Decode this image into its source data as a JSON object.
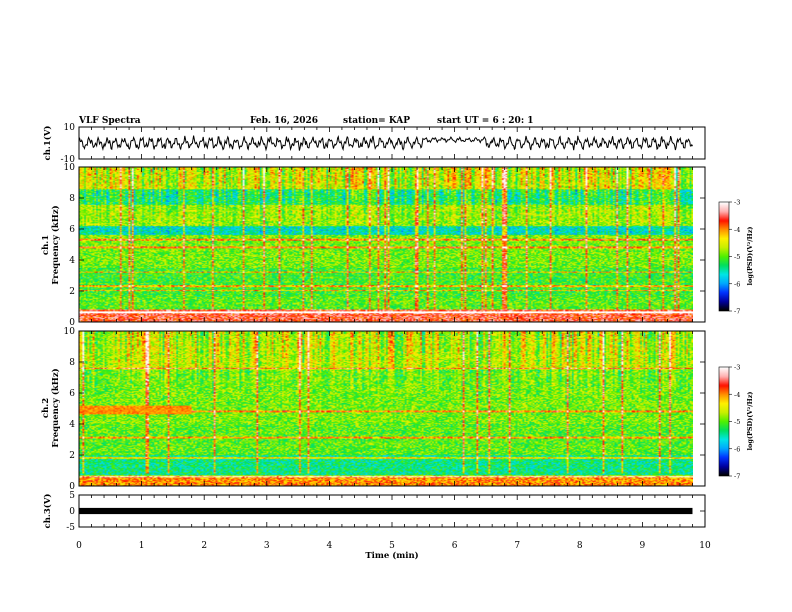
{
  "header": {
    "title": "VLF Spectra",
    "date": "Feb. 16, 2026",
    "station": "station= KAP",
    "start": "start UT = 6 : 20: 1"
  },
  "axes": {
    "ch1_label": "ch.1(V)",
    "ch3_label": "ch.3(V)",
    "freq_label_ch1": "Frequency (kHz)",
    "freq_label_ch2": "Frequency (kHz)",
    "ch1_short": "ch.1",
    "ch2_short": "ch.2",
    "xlabel": "Time (min)",
    "cbar_label_1": "log(PSD)(V²/Hz)",
    "cbar_label_2": "log(PSD)(V²/Hz)"
  },
  "colors": {
    "cmap": [
      "#000000",
      "#0000a0",
      "#0033ff",
      "#00a8ff",
      "#00e5e5",
      "#00e060",
      "#50f000",
      "#c8f000",
      "#fff000",
      "#ff9000",
      "#ff1000",
      "#ffb0b0",
      "#ffffff"
    ]
  },
  "chart_data": [
    {
      "type": "line",
      "name": "ch1 waveform",
      "xlabel": "",
      "ylabel": "ch.1(V)",
      "xlim": [
        0,
        10
      ],
      "ylim": [
        -10,
        10
      ],
      "yticks": [
        "10",
        "-10"
      ],
      "data_end_min": 9.8,
      "features": [
        {
          "t_range": [
            0,
            5.5
          ],
          "amplitude_v": 4,
          "center_v": 0
        },
        {
          "t_range": [
            5.5,
            6.5
          ],
          "amplitude_v": 1.5,
          "center_v": 2
        },
        {
          "t_range": [
            6.5,
            9.8
          ],
          "amplitude_v": 4,
          "center_v": 0
        }
      ]
    },
    {
      "type": "heatmap",
      "name": "ch.1 spectrogram",
      "ylabel": "Frequency (kHz)",
      "xlim": [
        0,
        10
      ],
      "ylim": [
        0,
        10
      ],
      "yticks": [
        "0",
        "2",
        "4",
        "6",
        "8",
        "10"
      ],
      "data_end_min": 9.8,
      "bands_khz": [
        {
          "range": [
            0,
            0.8
          ],
          "level": -3.6
        },
        {
          "range": [
            0.8,
            1.6
          ],
          "level": -5.0
        },
        {
          "range": [
            1.6,
            3.5
          ],
          "level": -5.1
        },
        {
          "range": [
            3.5,
            5.6
          ],
          "level": -4.9
        },
        {
          "range": [
            5.6,
            6.2
          ],
          "level": -5.6
        },
        {
          "range": [
            6.2,
            7.6
          ],
          "level": -4.8
        },
        {
          "range": [
            7.6,
            8.6
          ],
          "level": -5.3
        },
        {
          "range": [
            8.6,
            10
          ],
          "level": -4.6
        }
      ],
      "lines_khz": [
        0.6,
        2.0,
        2.3,
        3.2,
        4.8,
        5.3
      ],
      "colorbar": {
        "min": -7,
        "max": -3,
        "ticks": [
          "-3",
          "-4",
          "-5",
          "-6",
          "-7"
        ]
      }
    },
    {
      "type": "heatmap",
      "name": "ch.2 spectrogram",
      "ylabel": "Frequency (kHz)",
      "xlim": [
        0,
        10
      ],
      "ylim": [
        0,
        10
      ],
      "yticks": [
        "0",
        "2",
        "4",
        "6",
        "8",
        "10"
      ],
      "data_end_min": 9.8,
      "bands_khz": [
        {
          "range": [
            0,
            0.6
          ],
          "level": -4.0
        },
        {
          "range": [
            0.6,
            2.0
          ],
          "level": -5.4
        },
        {
          "range": [
            2.0,
            4.0
          ],
          "level": -5.0
        },
        {
          "range": [
            4.0,
            7.5
          ],
          "level": -4.9
        },
        {
          "range": [
            7.5,
            10
          ],
          "level": -4.6
        }
      ],
      "lines_khz": [
        0.6,
        1.8,
        3.1,
        4.8,
        7.6
      ],
      "patch": {
        "t_range": [
          0,
          1.8
        ],
        "f_range": [
          4.6,
          5.2
        ],
        "level": -4.0
      },
      "colorbar": {
        "min": -7,
        "max": -3,
        "ticks": [
          "-3",
          "-4",
          "-5",
          "-6",
          "-7"
        ]
      }
    },
    {
      "type": "line",
      "name": "ch3 waveform",
      "xlabel": "Time (min)",
      "ylabel": "ch.3(V)",
      "xlim": [
        0,
        10
      ],
      "ylim": [
        -5,
        5
      ],
      "yticks": [
        "5",
        "0",
        "-5"
      ],
      "xticks": [
        "0",
        "1",
        "2",
        "3",
        "4",
        "5",
        "6",
        "7",
        "8",
        "9",
        "10"
      ],
      "data_end_min": 9.8,
      "level_v": 0,
      "band_halfwidth_v": 0.5
    }
  ]
}
